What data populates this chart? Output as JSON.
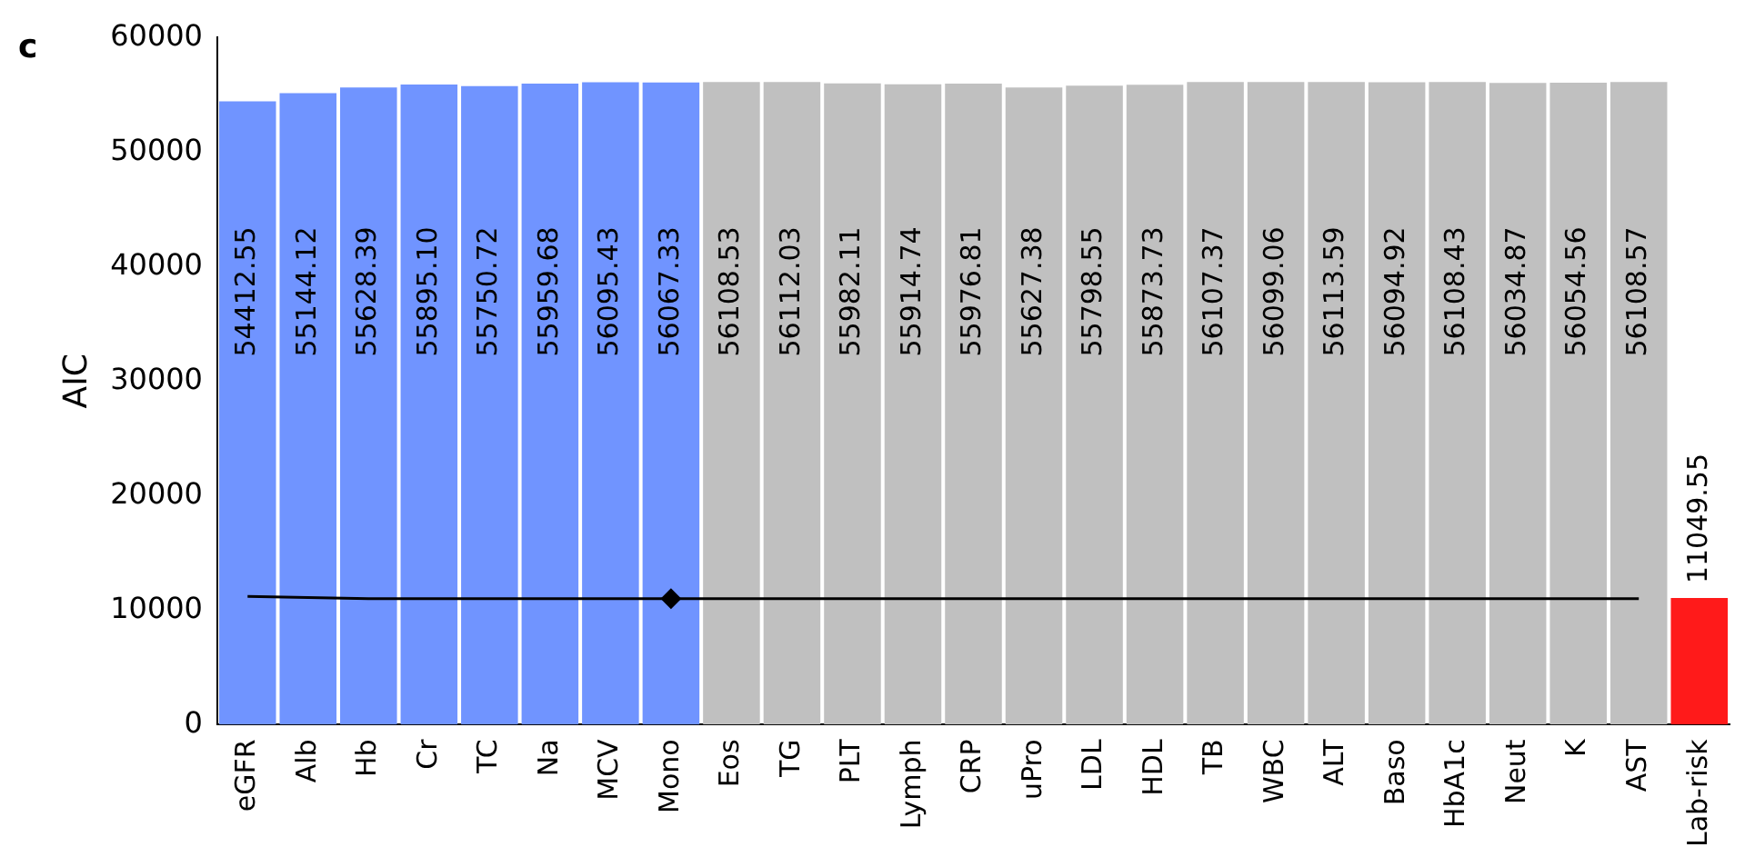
{
  "chart_data": {
    "type": "bar",
    "ylabel": "AIC",
    "annotations": [
      "c"
    ],
    "categories": [
      "eGFR",
      "Alb",
      "Hb",
      "Cr",
      "TC",
      "Na",
      "MCV",
      "Mono",
      "Eos",
      "TG",
      "PLT",
      "Lymph",
      "CRP",
      "uPro",
      "LDL",
      "HDL",
      "TB",
      "WBC",
      "ALT",
      "Baso",
      "HbA1c",
      "Neut",
      "K",
      "AST",
      "Lab-risk"
    ],
    "series": [
      {
        "values": [
          54412.55,
          55144.12,
          55628.39,
          55895.1,
          55750.72,
          55959.68,
          56095.43,
          56067.33,
          56108.53,
          56112.03,
          55982.11,
          55914.74,
          55976.81,
          55627.38,
          55798.55,
          55873.73,
          56107.37,
          56099.06,
          56113.59,
          56094.92,
          56108.43,
          56034.87,
          56054.56,
          56108.57,
          11049.55
        ],
        "value_labels": [
          "54412.55",
          "55144.12",
          "55628.39",
          "55895.10",
          "55750.72",
          "55959.68",
          "56095.43",
          "56067.33",
          "56108.53",
          "56112.03",
          "55982.11",
          "55914.74",
          "55976.81",
          "55627.38",
          "55798.55",
          "55873.73",
          "56107.37",
          "56099.06",
          "56113.59",
          "56094.92",
          "56108.43",
          "56034.87",
          "56054.56",
          "56108.57",
          "11049.55"
        ],
        "colors": [
          "#7094ff",
          "#7094ff",
          "#7094ff",
          "#7094ff",
          "#7094ff",
          "#7094ff",
          "#7094ff",
          "#7094ff",
          "#c0c0c0",
          "#c0c0c0",
          "#c0c0c0",
          "#c0c0c0",
          "#c0c0c0",
          "#c0c0c0",
          "#c0c0c0",
          "#c0c0c0",
          "#c0c0c0",
          "#c0c0c0",
          "#c0c0c0",
          "#c0c0c0",
          "#c0c0c0",
          "#c0c0c0",
          "#c0c0c0",
          "#c0c0c0",
          "#ff1a1a"
        ]
      },
      {
        "type": "line",
        "color": "#000000",
        "marker": "none",
        "values": [
          11200,
          11100,
          11000,
          11000,
          11000,
          11000,
          11000,
          11000,
          11000,
          11000,
          11000,
          11000,
          11000,
          11000,
          11000,
          11000,
          11000,
          11000,
          11000,
          11000,
          11000,
          11000,
          11000,
          11000,
          null
        ]
      },
      {
        "type": "scatter",
        "color": "#000000",
        "marker": "diamond",
        "x": [
          "Mono"
        ],
        "values": [
          11000
        ]
      }
    ],
    "ylim": [
      0,
      60000
    ],
    "yticks": [
      0,
      10000,
      20000,
      30000,
      40000,
      50000,
      60000
    ],
    "grid": false,
    "legend": false
  }
}
